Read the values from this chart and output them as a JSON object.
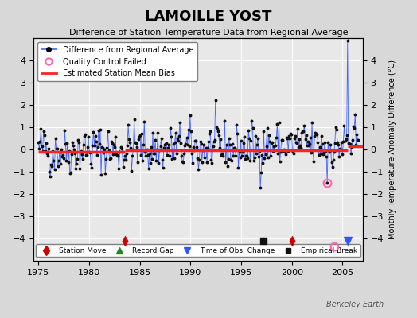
{
  "title": "LAMOILLE YOST",
  "subtitle": "Difference of Station Temperature Data from Regional Average",
  "ylabel": "Monthly Temperature Anomaly Difference (°C)",
  "xlim": [
    1974.5,
    2007.0
  ],
  "ylim": [
    -5,
    5
  ],
  "yticks": [
    -4,
    -3,
    -2,
    -1,
    0,
    1,
    2,
    3,
    4
  ],
  "xticks": [
    1975,
    1980,
    1985,
    1990,
    1995,
    2000,
    2005
  ],
  "bg_color": "#d8d8d8",
  "plot_bg_color": "#e8e8e8",
  "grid_color": "#ffffff",
  "line_color": "#4466ff",
  "dot_color": "#111111",
  "bias_color": "#ff2222",
  "watermark": "Berkeley Earth",
  "station_moves": [
    1983.5
  ],
  "empirical_breaks": [
    1997.2
  ],
  "obs_changes": [
    2005.5
  ],
  "qc_failed_x": [
    2003.5
  ],
  "qc_failed_y": [
    -1.5
  ],
  "station_move2_x": [
    2000.0
  ],
  "bias_segments": [
    {
      "x": [
        1975,
        1983.5
      ],
      "y": [
        -0.1,
        -0.1
      ]
    },
    {
      "x": [
        1983.5,
        2005.5
      ],
      "y": [
        -0.05,
        -0.05
      ]
    },
    {
      "x": [
        2005.5,
        2007.0
      ],
      "y": [
        0.15,
        0.15
      ]
    }
  ],
  "seed": 42
}
